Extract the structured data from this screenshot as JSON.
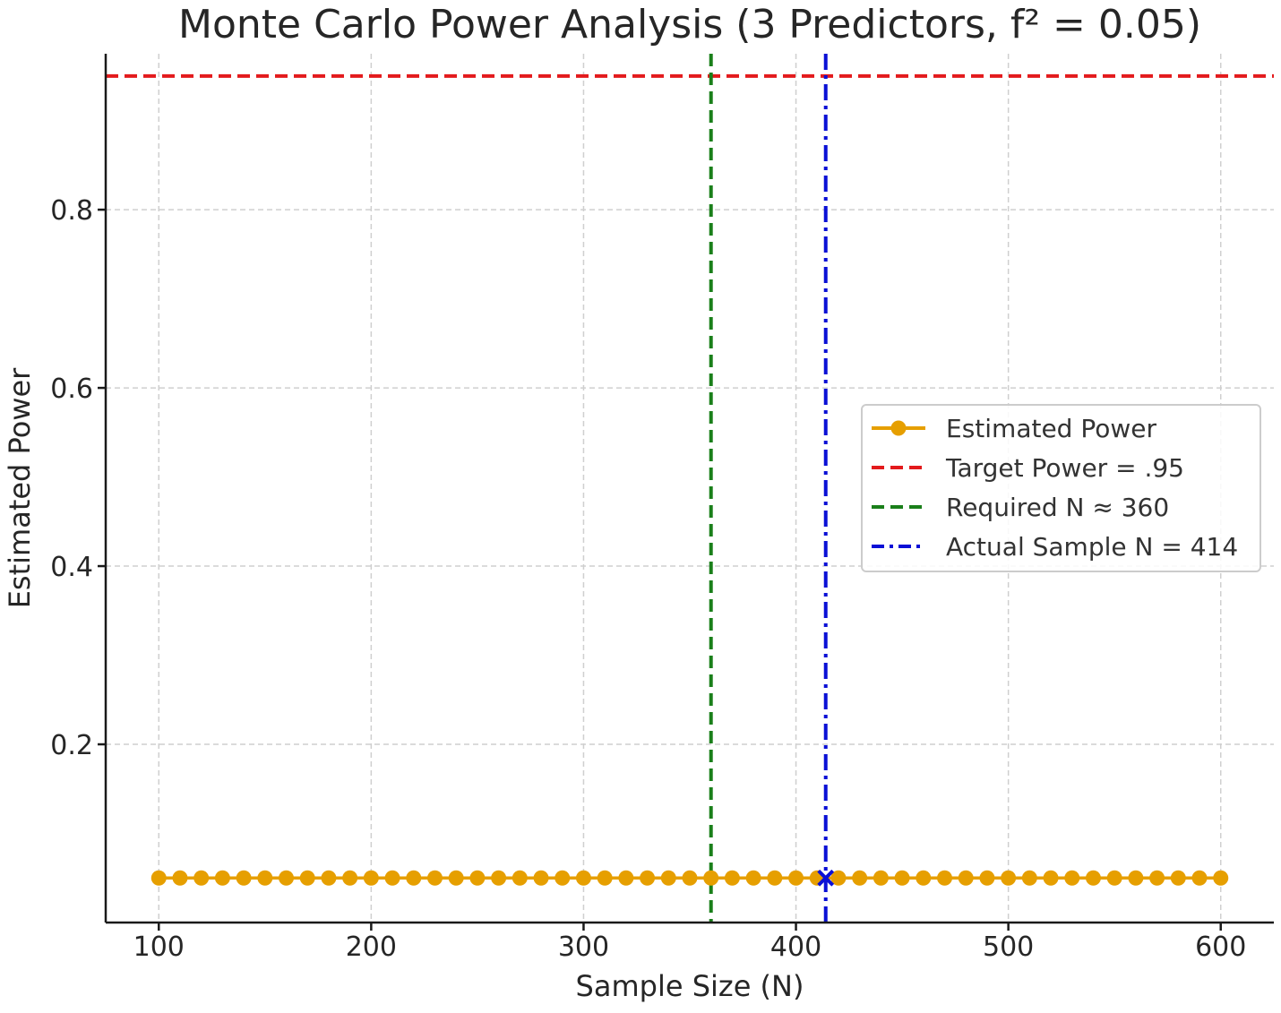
{
  "chart_data": {
    "type": "line",
    "title": "Monte Carlo Power Analysis (3 Predictors, f² = 0.05)",
    "xlabel": "Sample Size (N)",
    "ylabel": "Estimated Power",
    "xlim": [
      75,
      625
    ],
    "ylim": [
      0.0,
      0.975
    ],
    "xticks": [
      100,
      200,
      300,
      400,
      500,
      600
    ],
    "xtick_labels": [
      "100",
      "200",
      "300",
      "400",
      "500",
      "600"
    ],
    "yticks": [
      0.2,
      0.4,
      0.6,
      0.8
    ],
    "ytick_labels": [
      "0.2",
      "0.4",
      "0.6",
      "0.8"
    ],
    "grid": true,
    "legend_position": "center-right",
    "series": [
      {
        "name": "Estimated Power",
        "color": "#e69f00",
        "marker": "circle",
        "x": [
          100,
          110,
          120,
          130,
          140,
          150,
          160,
          170,
          180,
          190,
          200,
          210,
          220,
          230,
          240,
          250,
          260,
          270,
          280,
          290,
          300,
          310,
          320,
          330,
          340,
          350,
          360,
          370,
          380,
          390,
          400,
          410,
          420,
          430,
          440,
          450,
          460,
          470,
          480,
          490,
          500,
          510,
          520,
          530,
          540,
          550,
          560,
          570,
          580,
          590,
          600
        ],
        "y": [
          0.05,
          0.05,
          0.05,
          0.05,
          0.05,
          0.05,
          0.05,
          0.05,
          0.05,
          0.05,
          0.05,
          0.05,
          0.05,
          0.05,
          0.05,
          0.05,
          0.05,
          0.05,
          0.05,
          0.05,
          0.05,
          0.05,
          0.05,
          0.05,
          0.05,
          0.05,
          0.05,
          0.05,
          0.05,
          0.05,
          0.05,
          0.05,
          0.05,
          0.05,
          0.05,
          0.05,
          0.05,
          0.05,
          0.05,
          0.05,
          0.05,
          0.05,
          0.05,
          0.05,
          0.05,
          0.05,
          0.05,
          0.05,
          0.05,
          0.05,
          0.05
        ]
      }
    ],
    "reference_lines": [
      {
        "name": "Target Power = .95",
        "orientation": "horizontal",
        "value": 0.95,
        "color": "#e31a1c",
        "style": "dashed"
      },
      {
        "name": "Required N ≈ 360",
        "orientation": "vertical",
        "value": 360,
        "color": "#1a7f1a",
        "style": "dashed"
      },
      {
        "name": "Actual Sample N = 414",
        "orientation": "vertical",
        "value": 414,
        "color": "#0a10d6",
        "style": "dashdot"
      }
    ],
    "highlight_point": {
      "x": 414,
      "y": 0.05,
      "marker": "x",
      "color": "#0a10d6"
    }
  }
}
